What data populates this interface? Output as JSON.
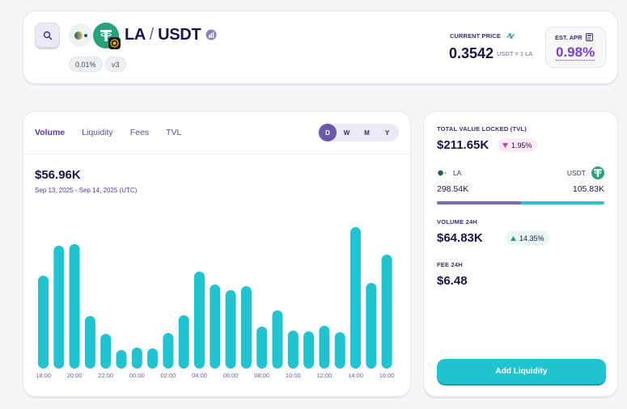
{
  "header": {
    "search_icon": "search-icon",
    "pair": {
      "base": "LA",
      "separator": "/",
      "quote": "USDT"
    },
    "chart_link_icon": "chart-link-icon",
    "fee_tier": "0.01%",
    "version": "v3",
    "current_price_label": "CURRENT PRICE",
    "current_price": "0.3542",
    "price_unit": "USDT = 1 LA",
    "est_apr_label": "EST. APR",
    "est_apr": "0.98%"
  },
  "chart_panel": {
    "tabs": [
      {
        "label": "Volume",
        "active": true
      },
      {
        "label": "Liquidity",
        "active": false
      },
      {
        "label": "Fees",
        "active": false
      },
      {
        "label": "TVL",
        "active": false
      }
    ],
    "ranges": [
      {
        "label": "D",
        "active": true
      },
      {
        "label": "W",
        "active": false
      },
      {
        "label": "M",
        "active": false
      },
      {
        "label": "Y",
        "active": false
      }
    ],
    "value": "$56.96K",
    "date_range": "Sep 13, 2025 - Sep 14, 2025 (UTC)"
  },
  "chart_data": {
    "type": "bar",
    "title": "Volume",
    "xlabel": "",
    "ylabel": "",
    "categories": [
      "18:00",
      "19:00",
      "20:00",
      "21:00",
      "22:00",
      "23:00",
      "00:00",
      "01:00",
      "02:00",
      "03:00",
      "04:00",
      "05:00",
      "06:00",
      "07:00",
      "08:00",
      "09:00",
      "10:00",
      "11:00",
      "12:00",
      "13:00",
      "14:00",
      "15:00",
      "16:00"
    ],
    "tick_labels": [
      "18:00",
      "20:00",
      "22:00",
      "00:00",
      "02:00",
      "04:00",
      "06:00",
      "08:00",
      "10:00",
      "12:00",
      "14:00",
      "16:00"
    ],
    "values": [
      115,
      152,
      154,
      65,
      43,
      23,
      26,
      25,
      44,
      66,
      120,
      104,
      97,
      102,
      52,
      72,
      47,
      46,
      53,
      45,
      175,
      106,
      141
    ],
    "value_units": "relative (no y-axis shown)",
    "ylim": [
      0,
      180
    ],
    "grid": false,
    "bar_color": "#20c3cf"
  },
  "stats": {
    "tvl_label": "TOTAL VALUE LOCKED (TVL)",
    "tvl_value": "$211.65K",
    "tvl_change": "1.95%",
    "tvl_change_direction": "down",
    "token0_symbol": "LA",
    "token1_symbol": "USDT",
    "token0_amount": "298.54K",
    "token1_amount": "105.83K",
    "token0_share": 0.5,
    "volume_label": "VOLUME 24H",
    "volume_value": "$64.83K",
    "volume_change": "14.35%",
    "volume_change_direction": "up",
    "fee_label": "FEE 24H",
    "fee_value": "$6.48",
    "add_liquidity_label": "Add Liquidity"
  },
  "colors": {
    "accent_purple": "#5b33a8",
    "teal": "#20c3cf",
    "usdt_green": "#26a17b",
    "down_pink": "#d63c8f",
    "up_green": "#1f9d78"
  }
}
